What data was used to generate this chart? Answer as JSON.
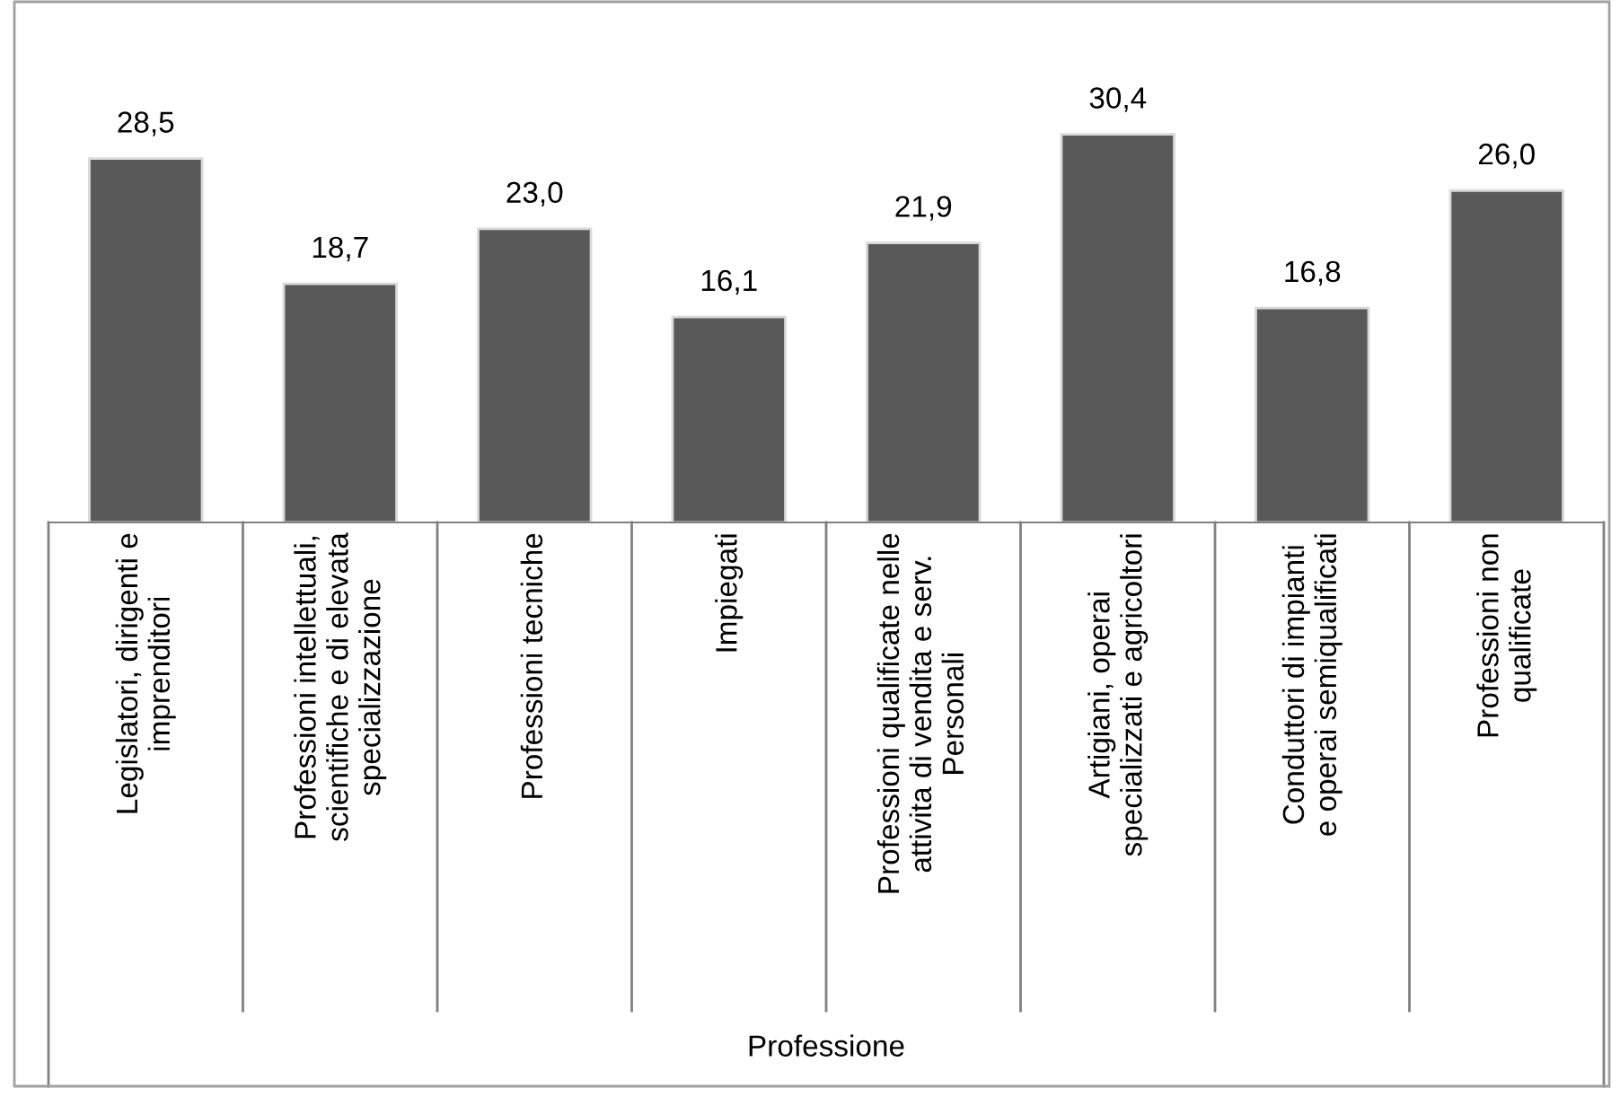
{
  "chart_data": {
    "type": "bar",
    "xlabel": "Professione",
    "categories": [
      "Legislatori, dirigenti e\nimprenditori",
      "Professioni intellettuali,\nscientifiche e di elevata\nspecializzazione",
      "Professioni tecniche",
      "Impiegati",
      "Professioni qualificate nelle\nattivita di vendita e serv.\nPersonali",
      "Artigiani, operai\nspecializzati e agricoltori",
      "Conduttori di impianti\ne operai semiqualificati",
      "Professioni non\nqualificate"
    ],
    "values": [
      28.5,
      18.7,
      23.0,
      16.1,
      21.9,
      30.4,
      16.8,
      26.0
    ],
    "value_labels": [
      "28,5",
      "18,7",
      "23,0",
      "16,1",
      "21,9",
      "30,4",
      "16,8",
      "26,0"
    ],
    "color": "#595959"
  }
}
